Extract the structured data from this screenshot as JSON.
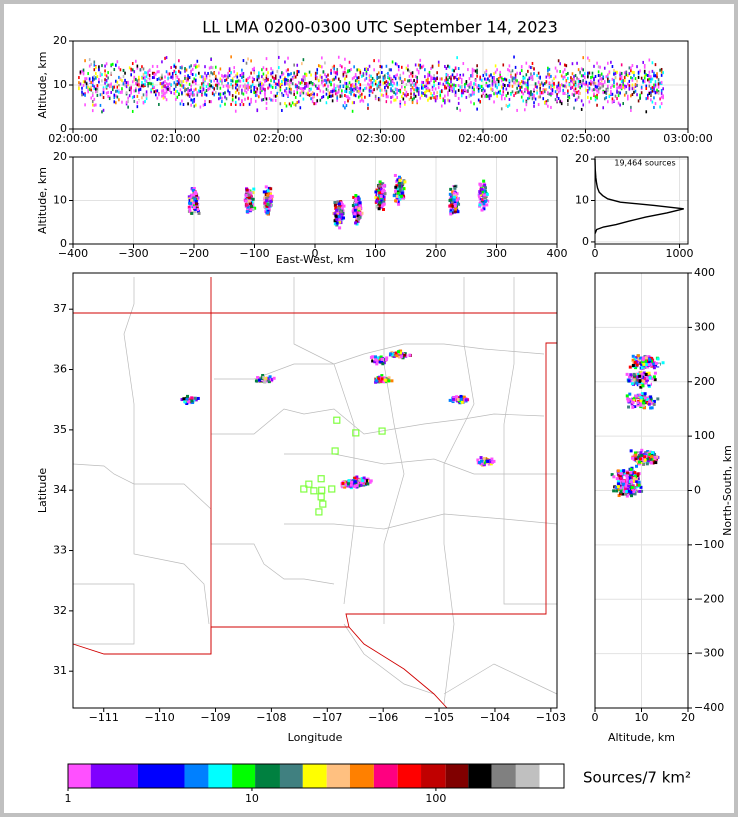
{
  "chart_data": [
    {
      "type": "scatter",
      "title": "LL LMA 0200-0300 UTC September 14, 2023",
      "ylabel": "Altitude, km",
      "xlim": [
        "02:00:00",
        "03:00:00"
      ],
      "xticks": [
        "02:00:00",
        "02:10:00",
        "02:20:00",
        "02:30:00",
        "02:40:00",
        "02:50:00",
        "03:00:00"
      ],
      "ylim": [
        0,
        20
      ],
      "yticks": [
        0,
        10,
        20
      ],
      "source_span": [
        "02:00:30",
        "02:57:30"
      ]
    },
    {
      "type": "scatter",
      "xlabel": "East-West, km",
      "ylabel": "Altitude, km",
      "xlim": [
        -400,
        400
      ],
      "xticks": [
        {
          "value": -400,
          "label": "−400"
        },
        {
          "value": -300,
          "label": "−300"
        },
        {
          "value": -200,
          "label": "−200"
        },
        {
          "value": -100,
          "label": "−100"
        },
        0,
        100,
        200,
        300,
        400
      ],
      "ylim": [
        0,
        20
      ],
      "yticks": [
        0,
        10,
        20
      ],
      "clusters": [
        {
          "x": -200,
          "alt": 10
        },
        {
          "x": -108,
          "alt": 10
        },
        {
          "x": -78,
          "alt": 10
        },
        {
          "x": 40,
          "alt": 7
        },
        {
          "x": 70,
          "alt": 8
        },
        {
          "x": 108,
          "alt": 11
        },
        {
          "x": 140,
          "alt": 12
        },
        {
          "x": 230,
          "alt": 10
        },
        {
          "x": 278,
          "alt": 11
        }
      ]
    },
    {
      "type": "line",
      "annotation": "19,464 sources",
      "xlim": [
        0,
        1100
      ],
      "xticks": [
        0,
        1000
      ],
      "ylim": [
        -0.5,
        20.5
      ],
      "yticks": [
        0,
        10,
        20
      ],
      "x": [
        0,
        20,
        100,
        250,
        400,
        600,
        850,
        1050,
        700,
        300,
        150,
        90,
        50,
        30,
        20,
        10,
        3,
        0
      ],
      "y": [
        2,
        3,
        3.6,
        4.2,
        5,
        6,
        7,
        8,
        8.8,
        9.6,
        10.4,
        11.2,
        12,
        13,
        14,
        15.5,
        17.5,
        20
      ]
    },
    {
      "type": "scatter",
      "xlabel": "Longitude",
      "ylabel": "Latitude",
      "xlim": [
        -111.55,
        -102.89
      ],
      "xticks": [
        {
          "value": -111,
          "label": "−111"
        },
        {
          "value": -110,
          "label": "−110"
        },
        {
          "value": -109,
          "label": "−109"
        },
        {
          "value": -108,
          "label": "−108"
        },
        {
          "value": -107,
          "label": "−107"
        },
        {
          "value": -106,
          "label": "−106"
        },
        {
          "value": -105,
          "label": "−105"
        },
        {
          "value": -104,
          "label": "−104"
        },
        {
          "value": -103,
          "label": "−103"
        }
      ],
      "ylim": [
        30.39,
        37.6
      ],
      "yticks": [
        31,
        32,
        33,
        34,
        35,
        36,
        37
      ],
      "stations": {
        "color": "#80ff40",
        "lon": [
          -106.83,
          -106.49,
          -106.02,
          -106.86,
          -107.11,
          -107.33,
          -107.42,
          -107.24,
          -107.1,
          -106.92,
          -107.11,
          -107.08,
          -107.15
        ],
        "lat": [
          35.16,
          34.95,
          34.98,
          34.65,
          34.19,
          34.1,
          34.02,
          33.99,
          34.0,
          34.02,
          33.89,
          33.77,
          33.64
        ]
      },
      "clusters": {
        "lon": [
          -108.12,
          -109.46,
          -106.06,
          -105.7,
          -106.03,
          -104.63,
          -104.18,
          -106.4,
          -106.58
        ],
        "lat": [
          35.83,
          35.5,
          36.16,
          36.24,
          35.83,
          35.5,
          34.47,
          34.15,
          34.1
        ]
      }
    },
    {
      "type": "scatter",
      "xlabel": "Altitude, km",
      "ylabel": "North-South, km",
      "xlim": [
        0,
        20
      ],
      "xticks": [
        0,
        10,
        20
      ],
      "ylim": [
        -400,
        400
      ],
      "yticks": [
        {
          "value": -400,
          "label": "−400"
        },
        {
          "value": -300,
          "label": "−300"
        },
        {
          "value": -200,
          "label": "−200"
        },
        {
          "value": -100,
          "label": "−100"
        },
        0,
        100,
        200,
        300,
        400
      ],
      "clusters": [
        {
          "alt": 11,
          "y": 235
        },
        {
          "alt": 10,
          "y": 205
        },
        {
          "alt": 10,
          "y": 165
        },
        {
          "alt": 11,
          "y": 60
        },
        {
          "alt": 7,
          "y": 25
        },
        {
          "alt": 7,
          "y": 5
        }
      ]
    },
    {
      "type": "colorbar",
      "label": "Sources/7 km²",
      "scale": "log",
      "xlim": [
        1,
        497
      ],
      "xticks": [
        1,
        10,
        100
      ],
      "bounds": [
        1,
        1.33,
        2.4,
        4.3,
        5.8,
        7.8,
        10.4,
        14.2,
        18.9,
        25.5,
        34.1,
        46,
        62,
        83,
        113,
        150,
        201,
        272,
        366,
        497
      ],
      "colors": [
        "#ff50ff",
        "#8000ff",
        "#0000ff",
        "#0080ff",
        "#00ffff",
        "#00ff00",
        "#008040",
        "#408080",
        "#ffff00",
        "#ffc080",
        "#ff8000",
        "#ff0080",
        "#ff0000",
        "#c00000",
        "#800000",
        "#000000",
        "#808080",
        "#c0c0c0",
        "#ffffff"
      ]
    }
  ]
}
